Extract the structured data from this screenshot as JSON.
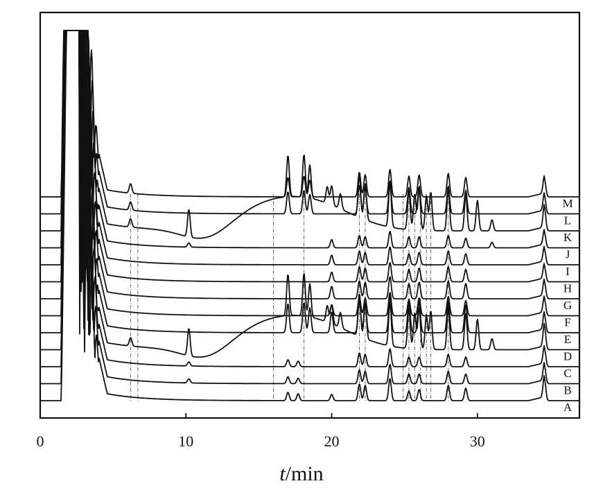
{
  "chart_data": {
    "type": "line",
    "chart_kind": "stacked chromatograms",
    "xlabel_var": "t",
    "xlabel_unit": "/min",
    "xlim": [
      0,
      37
    ],
    "xticks": [
      0,
      10,
      20,
      30
    ],
    "grid": false,
    "legend": "labels at right end of each trace",
    "reference_lines_min": [
      6.2,
      6.7,
      16.0,
      18.1,
      21.9,
      22.3,
      24.9,
      25.3,
      25.7,
      26.1,
      26.5,
      26.8,
      28.0
    ],
    "series": [
      {
        "name": "A",
        "peaks": [
          [
            17.0,
            12
          ],
          [
            17.7,
            10
          ],
          [
            20.0,
            9
          ],
          [
            21.9,
            24
          ],
          [
            22.3,
            22
          ],
          [
            24.0,
            32
          ],
          [
            25.3,
            14
          ],
          [
            26.0,
            16
          ],
          [
            28.0,
            22
          ],
          [
            29.2,
            18
          ],
          [
            34.6,
            32
          ]
        ]
      },
      {
        "name": "B",
        "peaks": [
          [
            10.2,
            6
          ],
          [
            17.0,
            10
          ],
          [
            17.7,
            8
          ],
          [
            21.9,
            20
          ],
          [
            22.3,
            18
          ],
          [
            24.0,
            28
          ],
          [
            25.3,
            14
          ],
          [
            26.0,
            14
          ],
          [
            28.0,
            18
          ],
          [
            29.2,
            14
          ],
          [
            34.6,
            26
          ]
        ]
      },
      {
        "name": "C",
        "peaks": [
          [
            10.2,
            6
          ],
          [
            17.0,
            10
          ],
          [
            17.7,
            8
          ],
          [
            21.9,
            20
          ],
          [
            22.3,
            18
          ],
          [
            24.0,
            26
          ],
          [
            25.3,
            14
          ],
          [
            26.0,
            14
          ],
          [
            28.0,
            18
          ],
          [
            29.2,
            14
          ],
          [
            34.6,
            26
          ]
        ]
      },
      {
        "name": "D",
        "peaks": [
          [
            6.2,
            12
          ],
          [
            10.2,
            40
          ],
          [
            17.0,
            60
          ],
          [
            18.1,
            62
          ],
          [
            18.5,
            48
          ],
          [
            19.7,
            24
          ],
          [
            20.0,
            28
          ],
          [
            20.6,
            22
          ],
          [
            21.9,
            62
          ],
          [
            22.3,
            52
          ],
          [
            24.0,
            64
          ],
          [
            25.3,
            58
          ],
          [
            25.7,
            52
          ],
          [
            26.0,
            60
          ],
          [
            26.5,
            50
          ],
          [
            26.8,
            56
          ],
          [
            28.0,
            62
          ],
          [
            29.2,
            52
          ],
          [
            30.0,
            44
          ],
          [
            31.0,
            16
          ],
          [
            34.6,
            34
          ]
        ]
      },
      {
        "name": "E",
        "peaks": [
          [
            17.0,
            42
          ],
          [
            18.1,
            44
          ],
          [
            18.5,
            36
          ],
          [
            20.0,
            30
          ],
          [
            21.9,
            48
          ],
          [
            22.3,
            42
          ],
          [
            24.0,
            54
          ],
          [
            25.3,
            44
          ],
          [
            26.0,
            46
          ],
          [
            28.0,
            46
          ],
          [
            29.2,
            40
          ],
          [
            34.6,
            26
          ]
        ]
      },
      {
        "name": "F",
        "peaks": [
          [
            20.0,
            16
          ],
          [
            21.9,
            28
          ],
          [
            22.3,
            26
          ],
          [
            24.0,
            34
          ],
          [
            25.3,
            24
          ],
          [
            26.0,
            26
          ],
          [
            28.0,
            28
          ],
          [
            29.2,
            22
          ],
          [
            34.6,
            24
          ]
        ]
      },
      {
        "name": "G",
        "peaks": [
          [
            20.0,
            18
          ],
          [
            21.9,
            26
          ],
          [
            22.3,
            24
          ],
          [
            24.0,
            32
          ],
          [
            25.3,
            22
          ],
          [
            26.0,
            24
          ],
          [
            28.0,
            26
          ],
          [
            29.2,
            22
          ],
          [
            34.6,
            24
          ]
        ]
      },
      {
        "name": "H",
        "peaks": [
          [
            20.0,
            14
          ],
          [
            21.9,
            22
          ],
          [
            22.3,
            20
          ],
          [
            24.0,
            28
          ],
          [
            25.3,
            18
          ],
          [
            26.0,
            20
          ],
          [
            28.0,
            22
          ],
          [
            29.2,
            18
          ],
          [
            34.6,
            22
          ]
        ]
      },
      {
        "name": "I",
        "peaks": [
          [
            20.0,
            14
          ],
          [
            21.9,
            20
          ],
          [
            22.3,
            18
          ],
          [
            24.0,
            26
          ],
          [
            25.3,
            16
          ],
          [
            26.0,
            18
          ],
          [
            28.0,
            20
          ],
          [
            29.2,
            16
          ],
          [
            34.6,
            22
          ]
        ]
      },
      {
        "name": "J",
        "peaks": [
          [
            10.2,
            6
          ],
          [
            20.0,
            12
          ],
          [
            21.9,
            18
          ],
          [
            22.3,
            16
          ],
          [
            24.0,
            24
          ],
          [
            25.3,
            16
          ],
          [
            26.0,
            16
          ],
          [
            28.0,
            18
          ],
          [
            29.2,
            14
          ],
          [
            31.0,
            8
          ],
          [
            34.6,
            22
          ]
        ]
      },
      {
        "name": "K",
        "peaks": [
          [
            6.2,
            12
          ],
          [
            10.2,
            40
          ],
          [
            17.0,
            60
          ],
          [
            18.1,
            62
          ],
          [
            18.5,
            48
          ],
          [
            19.7,
            24
          ],
          [
            20.0,
            28
          ],
          [
            20.6,
            22
          ],
          [
            21.9,
            62
          ],
          [
            22.3,
            52
          ],
          [
            24.0,
            64
          ],
          [
            25.3,
            58
          ],
          [
            25.7,
            52
          ],
          [
            26.0,
            60
          ],
          [
            26.5,
            50
          ],
          [
            26.8,
            56
          ],
          [
            28.0,
            62
          ],
          [
            29.2,
            52
          ],
          [
            30.0,
            44
          ],
          [
            31.0,
            16
          ],
          [
            34.6,
            34
          ]
        ]
      },
      {
        "name": "L",
        "peaks": [
          [
            6.2,
            12
          ],
          [
            17.0,
            32
          ],
          [
            18.1,
            34
          ],
          [
            18.5,
            28
          ],
          [
            21.9,
            42
          ],
          [
            22.3,
            38
          ],
          [
            24.0,
            48
          ],
          [
            25.3,
            38
          ],
          [
            26.0,
            40
          ],
          [
            28.0,
            40
          ],
          [
            29.2,
            34
          ],
          [
            34.6,
            26
          ]
        ]
      },
      {
        "name": "M",
        "peaks": [
          [
            6.2,
            14
          ],
          [
            17.0,
            28
          ],
          [
            18.1,
            30
          ],
          [
            18.5,
            24
          ],
          [
            21.9,
            36
          ],
          [
            22.3,
            32
          ],
          [
            24.0,
            40
          ],
          [
            25.3,
            30
          ],
          [
            26.0,
            32
          ],
          [
            28.0,
            34
          ],
          [
            29.2,
            28
          ],
          [
            34.6,
            26
          ]
        ]
      }
    ]
  }
}
